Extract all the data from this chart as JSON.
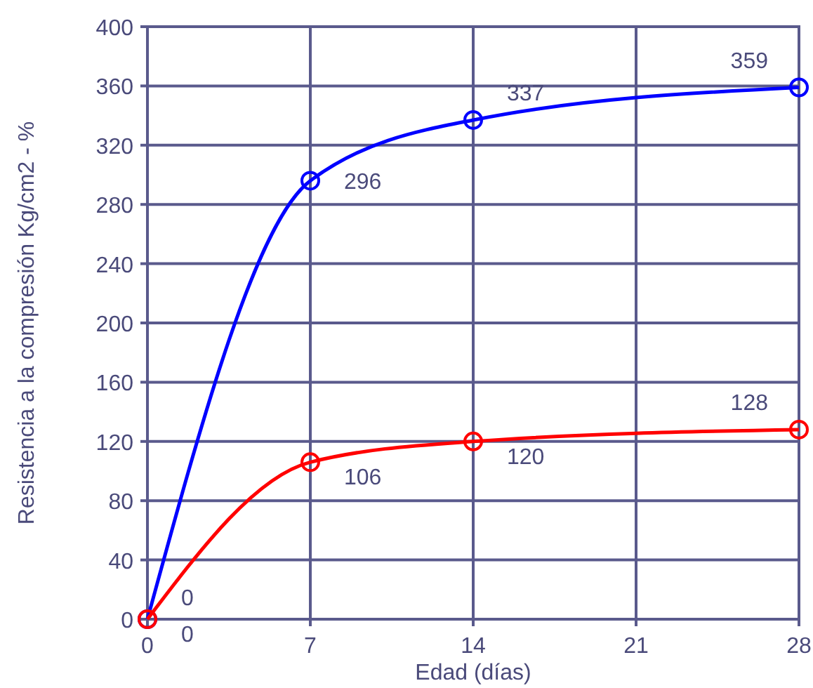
{
  "chart_data": {
    "type": "line",
    "xlabel": "Edad (días)",
    "ylabel": "Resistencia a la compresión Kg/cm2 - %",
    "x": [
      0,
      7,
      14,
      28
    ],
    "series": [
      {
        "color": "#0000ff",
        "values": [
          0,
          296,
          337,
          359
        ]
      },
      {
        "color": "#ff0000",
        "values": [
          0,
          106,
          120,
          128
        ]
      }
    ],
    "xlim": [
      0,
      28
    ],
    "xticks": [
      0,
      7,
      14,
      21,
      28
    ],
    "ylim": [
      0,
      400
    ],
    "yticks": [
      0,
      40,
      80,
      120,
      160,
      200,
      240,
      280,
      320,
      360,
      400
    ],
    "grid": true,
    "marker": "circle",
    "line_style": "solid",
    "data_labels": true
  }
}
